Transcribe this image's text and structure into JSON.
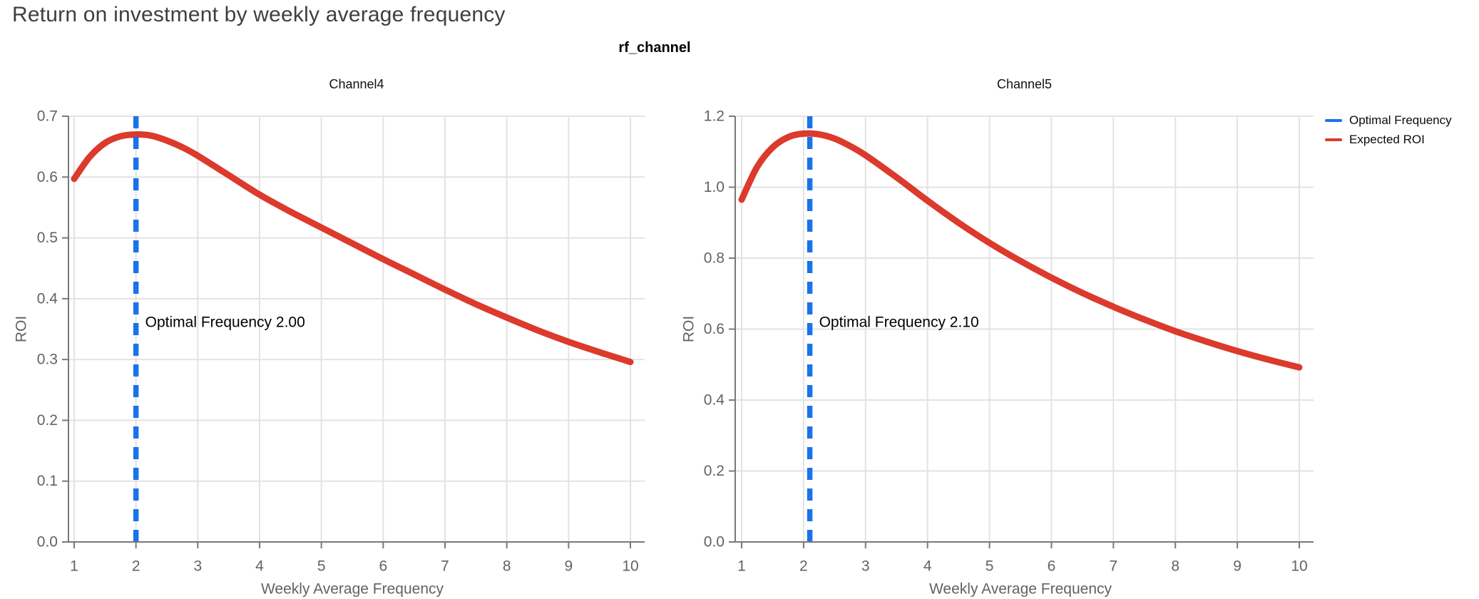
{
  "page": {
    "title": "Return on investment by weekly average frequency"
  },
  "figure": {
    "suptitle": "rf_channel"
  },
  "colors": {
    "optimal_frequency_blue": "#1A73E8",
    "expected_roi_red": "#DB3A2C",
    "gridline": "#E3E3E3",
    "axis_line": "#77797C",
    "tick_text": "#5F6368",
    "page_title_text": "#3C4043",
    "annotation_text": "#000000",
    "chart_title_text": "#111111"
  },
  "legend": {
    "items": [
      {
        "label": "Optimal Frequency",
        "color": "#1A73E8"
      },
      {
        "label": "Expected ROI",
        "color": "#DB3A2C"
      }
    ]
  },
  "chart_data": [
    {
      "type": "line",
      "title": "Channel4",
      "xlabel": "Weekly Average Frequency",
      "ylabel": "ROI",
      "xlim": [
        1,
        10
      ],
      "ylim": [
        0,
        0.7
      ],
      "x_ticks": [
        "1",
        "2",
        "3",
        "4",
        "5",
        "6",
        "7",
        "8",
        "9",
        "10"
      ],
      "y_ticks": [
        "0.0",
        "0.1",
        "0.2",
        "0.3",
        "0.4",
        "0.5",
        "0.6",
        "0.7"
      ],
      "grid": true,
      "optimal_frequency": 2.0,
      "annotation": "Optimal Frequency  2.00",
      "series": [
        {
          "name": "Expected ROI",
          "x": [
            1,
            1.25,
            1.5,
            1.75,
            2,
            2.25,
            2.5,
            2.75,
            3,
            3.5,
            4,
            4.5,
            5,
            5.5,
            6,
            6.5,
            7,
            7.5,
            8,
            8.5,
            9,
            9.5,
            10
          ],
          "y": [
            0.597,
            0.633,
            0.656,
            0.667,
            0.67,
            0.668,
            0.66,
            0.649,
            0.635,
            0.603,
            0.571,
            0.543,
            0.517,
            0.491,
            0.465,
            0.44,
            0.415,
            0.391,
            0.369,
            0.348,
            0.329,
            0.312,
            0.296
          ]
        }
      ]
    },
    {
      "type": "line",
      "title": "Channel5",
      "xlabel": "Weekly Average Frequency",
      "ylabel": "ROI",
      "xlim": [
        1,
        10
      ],
      "ylim": [
        0,
        1.2
      ],
      "x_ticks": [
        "1",
        "2",
        "3",
        "4",
        "5",
        "6",
        "7",
        "8",
        "9",
        "10"
      ],
      "y_ticks": [
        "0.0",
        "0.2",
        "0.4",
        "0.6",
        "0.8",
        "1.0",
        "1.2"
      ],
      "grid": true,
      "optimal_frequency": 2.1,
      "annotation": "Optimal Frequency  2.10",
      "series": [
        {
          "name": "Expected ROI",
          "x": [
            1,
            1.25,
            1.5,
            1.75,
            2,
            2.25,
            2.5,
            2.75,
            3,
            3.5,
            4,
            4.5,
            5,
            5.5,
            6,
            6.5,
            7,
            7.5,
            8,
            8.5,
            9,
            9.5,
            10
          ],
          "y": [
            0.965,
            1.057,
            1.112,
            1.141,
            1.151,
            1.149,
            1.137,
            1.116,
            1.09,
            1.028,
            0.962,
            0.9,
            0.843,
            0.792,
            0.745,
            0.702,
            0.663,
            0.627,
            0.594,
            0.565,
            0.538,
            0.514,
            0.492
          ]
        }
      ]
    }
  ]
}
